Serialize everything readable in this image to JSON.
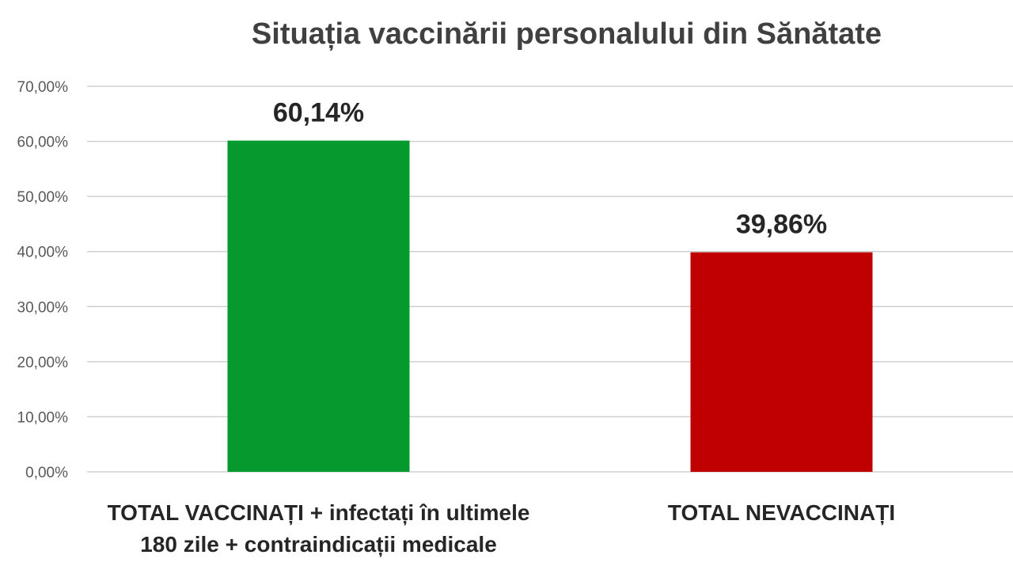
{
  "chart_data": {
    "type": "bar",
    "title": "Situația vaccinării personalului din Sănătate",
    "categories": [
      [
        "TOTAL VACCINAȚI + infectați în ultimele",
        "180 zile + contraindicații medicale"
      ],
      [
        "TOTAL NEVACCINAȚI"
      ]
    ],
    "values": [
      60.14,
      39.86
    ],
    "data_labels": [
      "60,14%",
      "39,86%"
    ],
    "colors": [
      "#069a2e",
      "#c00000"
    ],
    "yticks": [
      "0,00%",
      "10,00%",
      "20,00%",
      "30,00%",
      "40,00%",
      "50,00%",
      "60,00%",
      "70,00%"
    ],
    "ylim": [
      0,
      70
    ],
    "grid": true,
    "legend": "none"
  }
}
